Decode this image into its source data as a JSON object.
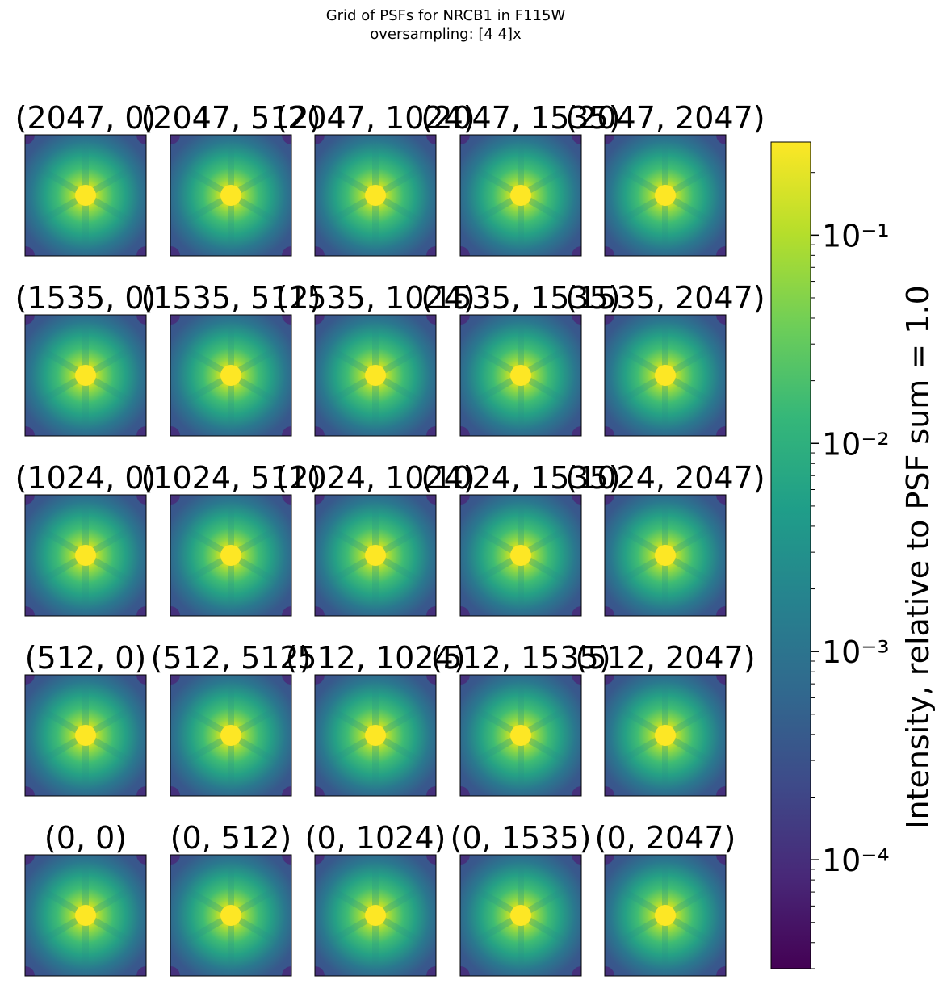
{
  "chart_data": {
    "type": "heatmap",
    "title": "Grid of PSFs for NRCB1 in F115W",
    "subtitle": "oversampling: [4 4]x",
    "rows": [
      [
        "(2047, 0)",
        "(2047, 512)",
        "(2047, 1024)",
        "(2047, 1535)",
        "(2047, 2047)"
      ],
      [
        "(1535, 0)",
        "(1535, 512)",
        "(1535, 1024)",
        "(1535, 1535)",
        "(1535, 2047)"
      ],
      [
        "(1024, 0)",
        "(1024, 512)",
        "(1024, 1024)",
        "(1024, 1535)",
        "(1024, 2047)"
      ],
      [
        "(512, 0)",
        "(512, 512)",
        "(512, 1024)",
        "(512, 1535)",
        "(512, 2047)"
      ],
      [
        "(0, 0)",
        "(0, 512)",
        "(0, 1024)",
        "(0, 1535)",
        "(0, 2047)"
      ]
    ],
    "colorbar": {
      "label": "Intensity, relative to PSF sum = 1.0",
      "scale": "log",
      "colormap": "viridis",
      "range": [
        3e-05,
        0.28
      ],
      "ticks": [
        {
          "value": 0.1,
          "label": "10⁻¹"
        },
        {
          "value": 0.01,
          "label": "10⁻²"
        },
        {
          "value": 0.001,
          "label": "10⁻³"
        },
        {
          "value": 0.0001,
          "label": "10⁻⁴"
        }
      ]
    },
    "colors": {
      "viridis": [
        "#440154",
        "#482878",
        "#3e4a89",
        "#31688e",
        "#26828e",
        "#1f9e89",
        "#35b779",
        "#6ece58",
        "#b5de2b",
        "#fde725"
      ]
    }
  }
}
